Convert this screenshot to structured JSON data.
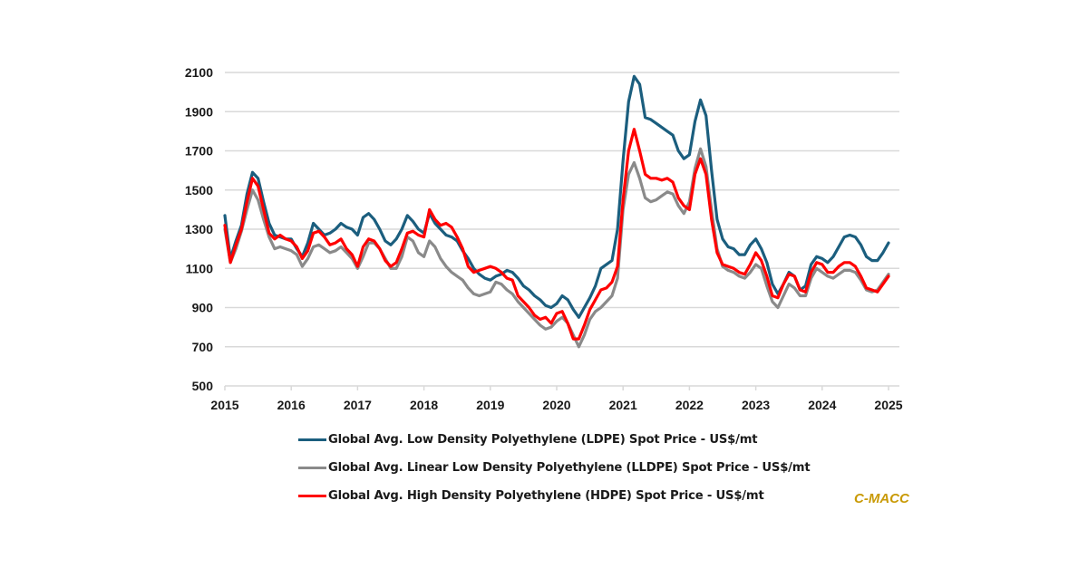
{
  "chart_data": {
    "type": "line",
    "title": "",
    "xlabel": "",
    "ylabel": "",
    "ylim": [
      500,
      2100
    ],
    "yticks": [
      "500",
      "700",
      "900",
      "1100",
      "1300",
      "1500",
      "1700",
      "1900",
      "2100"
    ],
    "xlim": [
      2015,
      2025.17
    ],
    "xticks": [
      "2015",
      "2016",
      "2017",
      "2018",
      "2019",
      "2020",
      "2021",
      "2022",
      "2023",
      "2024",
      "2025"
    ],
    "grid": "horizontal",
    "legend_position": "bottom",
    "x_step": "monthly from 2015.0",
    "series": [
      {
        "name": "Global Avg. Low Density Polyethylene (LDPE) Spot Price - US$/mt",
        "color": "#1b5e7e",
        "values": [
          1370,
          1150,
          1240,
          1320,
          1480,
          1590,
          1560,
          1440,
          1330,
          1270,
          1260,
          1250,
          1250,
          1200,
          1160,
          1230,
          1330,
          1300,
          1270,
          1280,
          1300,
          1330,
          1310,
          1300,
          1270,
          1360,
          1380,
          1350,
          1300,
          1240,
          1220,
          1250,
          1300,
          1370,
          1340,
          1300,
          1280,
          1380,
          1330,
          1300,
          1270,
          1260,
          1240,
          1190,
          1150,
          1100,
          1070,
          1050,
          1040,
          1060,
          1070,
          1090,
          1080,
          1050,
          1010,
          990,
          960,
          940,
          910,
          900,
          920,
          960,
          940,
          890,
          850,
          900,
          950,
          1010,
          1100,
          1120,
          1140,
          1300,
          1650,
          1950,
          2080,
          2040,
          1870,
          1860,
          1840,
          1820,
          1800,
          1780,
          1700,
          1660,
          1680,
          1850,
          1960,
          1880,
          1600,
          1350,
          1250,
          1210,
          1200,
          1170,
          1170,
          1220,
          1250,
          1200,
          1130,
          1020,
          970,
          1020,
          1080,
          1060,
          990,
          1010,
          1120,
          1160,
          1150,
          1130,
          1160,
          1210,
          1260,
          1270,
          1260,
          1220,
          1160,
          1140,
          1140,
          1180,
          1230
        ]
      },
      {
        "name": "Global Avg. Linear Low Density Polyethylene (LLDPE) Spot Price - US$/mt",
        "color": "#8a8a8a",
        "values": [
          1300,
          1130,
          1200,
          1290,
          1400,
          1500,
          1450,
          1350,
          1260,
          1200,
          1210,
          1200,
          1190,
          1170,
          1110,
          1150,
          1210,
          1220,
          1200,
          1180,
          1190,
          1210,
          1180,
          1150,
          1100,
          1160,
          1230,
          1230,
          1200,
          1150,
          1100,
          1100,
          1160,
          1260,
          1240,
          1180,
          1160,
          1240,
          1210,
          1150,
          1110,
          1080,
          1060,
          1040,
          1000,
          970,
          960,
          970,
          980,
          1030,
          1020,
          990,
          970,
          930,
          900,
          870,
          840,
          810,
          790,
          800,
          830,
          850,
          820,
          760,
          700,
          760,
          840,
          880,
          900,
          930,
          960,
          1050,
          1400,
          1580,
          1640,
          1560,
          1460,
          1440,
          1450,
          1470,
          1490,
          1480,
          1420,
          1380,
          1440,
          1610,
          1710,
          1620,
          1400,
          1200,
          1110,
          1090,
          1080,
          1060,
          1050,
          1080,
          1120,
          1100,
          1010,
          930,
          900,
          960,
          1020,
          1000,
          960,
          960,
          1050,
          1100,
          1080,
          1060,
          1050,
          1070,
          1090,
          1090,
          1080,
          1040,
          990,
          980,
          990,
          1030,
          1070
        ]
      },
      {
        "name": "Global Avg. High Density Polyethylene (HDPE) Spot Price - US$/mt",
        "color": "#ff0000",
        "values": [
          1320,
          1130,
          1220,
          1300,
          1440,
          1560,
          1520,
          1400,
          1280,
          1250,
          1270,
          1250,
          1240,
          1210,
          1150,
          1190,
          1280,
          1290,
          1260,
          1220,
          1230,
          1250,
          1200,
          1170,
          1110,
          1210,
          1250,
          1240,
          1200,
          1140,
          1110,
          1130,
          1200,
          1280,
          1290,
          1270,
          1260,
          1400,
          1350,
          1320,
          1330,
          1310,
          1260,
          1200,
          1110,
          1080,
          1090,
          1100,
          1110,
          1100,
          1080,
          1050,
          1040,
          960,
          930,
          900,
          860,
          840,
          850,
          820,
          870,
          880,
          820,
          740,
          740,
          810,
          890,
          940,
          990,
          1000,
          1030,
          1110,
          1450,
          1700,
          1810,
          1700,
          1580,
          1560,
          1560,
          1550,
          1560,
          1540,
          1460,
          1420,
          1400,
          1580,
          1660,
          1580,
          1350,
          1180,
          1120,
          1110,
          1100,
          1080,
          1070,
          1120,
          1180,
          1140,
          1060,
          960,
          950,
          1020,
          1070,
          1060,
          990,
          980,
          1080,
          1130,
          1120,
          1080,
          1080,
          1110,
          1130,
          1130,
          1110,
          1060,
          1000,
          990,
          980,
          1020,
          1060
        ]
      }
    ]
  },
  "legend": {
    "items": [
      {
        "label": "Global Avg. Low Density Polyethylene (LDPE) Spot Price - US$/mt",
        "color": "#1b5e7e"
      },
      {
        "label": "Global Avg. Linear Low Density Polyethylene (LLDPE) Spot Price - US$/mt",
        "color": "#8a8a8a"
      },
      {
        "label": "Global Avg. High Density Polyethylene (HDPE) Spot Price - US$/mt",
        "color": "#ff0000"
      }
    ]
  },
  "source": "C-MACC"
}
